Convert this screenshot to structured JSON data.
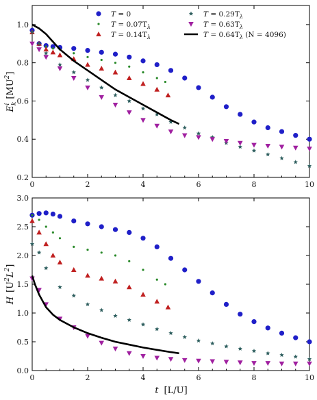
{
  "chart_data": [
    {
      "type": "scatter",
      "ylabel": "E_k^i  [MU^2]",
      "xlim": [
        0,
        10
      ],
      "ylim": [
        0.2,
        1.1
      ],
      "xticks": [
        "0",
        "2",
        "4",
        "6",
        "8",
        "10"
      ],
      "yticks": [
        "0.2",
        "0.4",
        "0.6",
        "0.8",
        "1.0"
      ],
      "legend_position": "top",
      "series": [
        {
          "name": "T = 0",
          "marker": "circle",
          "color": "#1f1fc8",
          "x": [
            0,
            0.25,
            0.5,
            0.75,
            1.0,
            1.5,
            2.0,
            2.5,
            3.0,
            3.5,
            4.0,
            4.5,
            5.0,
            5.5,
            6.0,
            6.5,
            7.0,
            7.5,
            8.0,
            8.5,
            9.0,
            9.5,
            10.0
          ],
          "y": [
            0.97,
            0.9,
            0.89,
            0.885,
            0.88,
            0.875,
            0.865,
            0.855,
            0.845,
            0.83,
            0.81,
            0.79,
            0.76,
            0.72,
            0.67,
            0.62,
            0.57,
            0.53,
            0.49,
            0.46,
            0.44,
            0.42,
            0.4
          ]
        },
        {
          "name": "T = 0.07T_λ",
          "marker": "dot",
          "color": "#2a8a2a",
          "x": [
            0,
            0.25,
            0.5,
            0.75,
            1.0,
            1.5,
            2.0,
            2.5,
            3.0,
            3.5,
            4.0,
            4.5,
            4.8
          ],
          "y": [
            0.96,
            0.9,
            0.885,
            0.875,
            0.87,
            0.85,
            0.83,
            0.815,
            0.8,
            0.78,
            0.75,
            0.72,
            0.7
          ]
        },
        {
          "name": "T = 0.14T_λ",
          "marker": "triangle-up",
          "color": "#c02020",
          "x": [
            0,
            0.25,
            0.5,
            0.75,
            1.0,
            1.5,
            2.0,
            2.5,
            3.0,
            3.5,
            4.0,
            4.5,
            4.9
          ],
          "y": [
            0.96,
            0.9,
            0.87,
            0.855,
            0.84,
            0.82,
            0.79,
            0.77,
            0.75,
            0.72,
            0.69,
            0.66,
            0.63
          ]
        },
        {
          "name": "T = 0.29T_λ",
          "marker": "star",
          "color": "#2f5f5f",
          "x": [
            0,
            0.25,
            0.5,
            1.0,
            1.5,
            2.0,
            2.5,
            3.0,
            3.5,
            4.0,
            4.5,
            5.0,
            5.5,
            6.0,
            6.5,
            7.0,
            7.5,
            8.0,
            8.5,
            9.0,
            9.5,
            10.0
          ],
          "y": [
            0.96,
            0.9,
            0.85,
            0.79,
            0.75,
            0.71,
            0.67,
            0.63,
            0.6,
            0.56,
            0.53,
            0.49,
            0.46,
            0.43,
            0.41,
            0.38,
            0.36,
            0.34,
            0.32,
            0.3,
            0.28,
            0.26
          ]
        },
        {
          "name": "T = 0.63T_λ",
          "marker": "triangle-down",
          "color": "#a020a0",
          "x": [
            0,
            0.25,
            0.5,
            1.0,
            1.5,
            2.0,
            2.5,
            3.0,
            3.5,
            4.0,
            4.5,
            5.0,
            5.5,
            6.0,
            6.5,
            7.0,
            7.5,
            8.0,
            8.5,
            9.0,
            9.5,
            10.0
          ],
          "y": [
            0.9,
            0.87,
            0.83,
            0.77,
            0.72,
            0.67,
            0.62,
            0.58,
            0.54,
            0.5,
            0.47,
            0.44,
            0.42,
            0.41,
            0.4,
            0.39,
            0.38,
            0.37,
            0.365,
            0.36,
            0.355,
            0.35
          ]
        },
        {
          "name": "T = 0.64T_λ (N = 4096)",
          "marker": "line",
          "color": "#000000",
          "x": [
            0,
            0.25,
            0.5,
            0.75,
            1.0,
            1.5,
            2.0,
            2.5,
            3.0,
            3.5,
            4.0,
            4.5,
            5.0,
            5.3
          ],
          "y": [
            1.0,
            0.98,
            0.95,
            0.91,
            0.87,
            0.81,
            0.76,
            0.71,
            0.66,
            0.62,
            0.58,
            0.54,
            0.5,
            0.48
          ]
        }
      ]
    },
    {
      "type": "scatter",
      "xlabel": "t  [L/U]",
      "ylabel": "H  [U^2 L^2]",
      "xlim": [
        0,
        10
      ],
      "ylim": [
        0,
        3.0
      ],
      "xticks": [
        "0",
        "2",
        "4",
        "6",
        "8",
        "10"
      ],
      "yticks": [
        "0.0",
        "0.5",
        "1.0",
        "1.5",
        "2.0",
        "2.5",
        "3.0"
      ],
      "series": [
        {
          "name": "T = 0",
          "marker": "circle",
          "color": "#1f1fc8",
          "x": [
            0,
            0.25,
            0.5,
            0.75,
            1.0,
            1.5,
            2.0,
            2.5,
            3.0,
            3.5,
            4.0,
            4.5,
            5.0,
            5.5,
            6.0,
            6.5,
            7.0,
            7.5,
            8.0,
            8.5,
            9.0,
            9.5,
            10.0
          ],
          "y": [
            2.7,
            2.73,
            2.74,
            2.72,
            2.68,
            2.6,
            2.55,
            2.5,
            2.45,
            2.4,
            2.3,
            2.15,
            1.95,
            1.75,
            1.55,
            1.35,
            1.15,
            0.98,
            0.85,
            0.74,
            0.65,
            0.57,
            0.5
          ]
        },
        {
          "name": "T = 0.07T_λ",
          "marker": "dot",
          "color": "#2a8a2a",
          "x": [
            0,
            0.25,
            0.5,
            0.75,
            1.0,
            1.5,
            2.0,
            2.5,
            3.0,
            3.5,
            4.0,
            4.5,
            4.8
          ],
          "y": [
            2.7,
            2.62,
            2.5,
            2.4,
            2.3,
            2.15,
            2.1,
            2.05,
            2.0,
            1.9,
            1.75,
            1.58,
            1.5
          ]
        },
        {
          "name": "T = 0.14T_λ",
          "marker": "triangle-up",
          "color": "#c02020",
          "x": [
            0,
            0.25,
            0.5,
            0.75,
            1.0,
            1.5,
            2.0,
            2.5,
            3.0,
            3.5,
            4.0,
            4.5,
            4.9
          ],
          "y": [
            2.6,
            2.4,
            2.2,
            2.0,
            1.88,
            1.75,
            1.65,
            1.6,
            1.55,
            1.45,
            1.32,
            1.2,
            1.1
          ]
        },
        {
          "name": "T = 0.29T_λ",
          "marker": "star",
          "color": "#2f5f5f",
          "x": [
            0,
            0.25,
            0.5,
            1.0,
            1.5,
            2.0,
            2.5,
            3.0,
            3.5,
            4.0,
            4.5,
            5.0,
            5.5,
            6.0,
            6.5,
            7.0,
            7.5,
            8.0,
            8.5,
            9.0,
            9.5,
            10.0
          ],
          "y": [
            2.2,
            2.05,
            1.78,
            1.45,
            1.3,
            1.15,
            1.05,
            0.95,
            0.88,
            0.8,
            0.72,
            0.65,
            0.58,
            0.52,
            0.47,
            0.42,
            0.38,
            0.34,
            0.3,
            0.27,
            0.24,
            0.2
          ]
        },
        {
          "name": "T = 0.63T_λ",
          "marker": "triangle-down",
          "color": "#a020a0",
          "x": [
            0,
            0.25,
            0.5,
            1.0,
            1.5,
            2.0,
            2.5,
            3.0,
            3.5,
            4.0,
            4.5,
            5.0,
            5.5,
            6.0,
            6.5,
            7.0,
            7.5,
            8.0,
            8.5,
            9.0,
            9.5,
            10.0
          ],
          "y": [
            1.6,
            1.4,
            1.15,
            0.9,
            0.75,
            0.6,
            0.48,
            0.38,
            0.3,
            0.25,
            0.22,
            0.2,
            0.18,
            0.17,
            0.16,
            0.15,
            0.14,
            0.13,
            0.13,
            0.12,
            0.12,
            0.12
          ]
        },
        {
          "name": "T = 0.64T_λ (N = 4096)",
          "marker": "line",
          "color": "#000000",
          "x": [
            0,
            0.1,
            0.25,
            0.5,
            0.75,
            1.0,
            1.5,
            2.0,
            2.5,
            3.0,
            3.5,
            4.0,
            4.5,
            5.0,
            5.3
          ],
          "y": [
            1.65,
            1.5,
            1.32,
            1.1,
            0.97,
            0.88,
            0.75,
            0.65,
            0.57,
            0.5,
            0.45,
            0.4,
            0.36,
            0.32,
            0.3
          ]
        }
      ]
    }
  ],
  "legend": [
    {
      "id": "s0",
      "prefix": "T",
      "rhs": "0",
      "marker": "circle",
      "color": "#1f1fc8"
    },
    {
      "id": "s1",
      "prefix": "T",
      "rhs": "0.07T",
      "sub": "λ",
      "marker": "dot",
      "color": "#2a8a2a"
    },
    {
      "id": "s2",
      "prefix": "T",
      "rhs": "0.14T",
      "sub": "λ",
      "marker": "triangle-up",
      "color": "#c02020"
    },
    {
      "id": "s3",
      "prefix": "T",
      "rhs": "0.29T",
      "sub": "λ",
      "marker": "star",
      "color": "#2f5f5f"
    },
    {
      "id": "s4",
      "prefix": "T",
      "rhs": "0.63T",
      "sub": "λ",
      "marker": "triangle-down",
      "color": "#a020a0"
    },
    {
      "id": "s5",
      "prefix": "T",
      "rhs": "0.64T",
      "sub": "λ",
      "extra": " (N = 4096)",
      "marker": "line",
      "color": "#000000"
    }
  ],
  "labels": {
    "top_ylabel_main": "E",
    "top_ylabel_sub": "k",
    "top_ylabel_sup": "i",
    "top_ylabel_units": "[MU",
    "top_ylabel_units_sup": "2",
    "top_ylabel_units_end": "]",
    "bottom_ylabel_main": "H",
    "bottom_ylabel_units": "[U",
    "bottom_ylabel_units_sup1": "2",
    "bottom_ylabel_units_mid": "L",
    "bottom_ylabel_units_sup2": "2",
    "bottom_ylabel_units_end": "]",
    "xlabel_main": "t",
    "xlabel_units": "[L/U]"
  }
}
